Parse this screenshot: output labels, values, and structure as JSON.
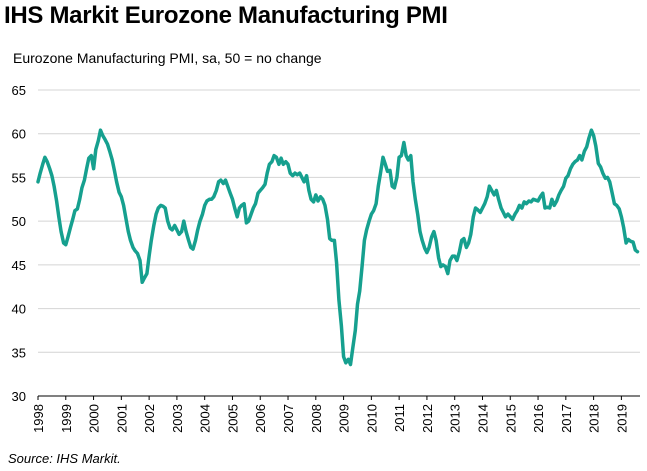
{
  "title": "IHS Markit Eurozone Manufacturing PMI",
  "subtitle": "Eurozone Manufacturing PMI, sa, 50 = no change",
  "source": "Source: IHS Markit.",
  "line_color": "#16a08f",
  "chart_data": {
    "type": "line",
    "title": "IHS Markit Eurozone Manufacturing PMI",
    "ylabel": "",
    "xlabel": "",
    "ylim": [
      30,
      65
    ],
    "yticks": [
      30,
      35,
      40,
      45,
      50,
      55,
      60,
      65
    ],
    "xlim": [
      1998,
      2019.67
    ],
    "xticks": [
      "1998",
      "1999",
      "2000",
      "2001",
      "2002",
      "2003",
      "2004",
      "2005",
      "2006",
      "2007",
      "2008",
      "2009",
      "2010",
      "2011",
      "2012",
      "2013",
      "2014",
      "2015",
      "2016",
      "2017",
      "2018",
      "2019"
    ],
    "grid": "horizontal",
    "series": [
      {
        "points": [
          [
            1998.0,
            54.5
          ],
          [
            1998.08,
            55.5
          ],
          [
            1998.17,
            56.5
          ],
          [
            1998.25,
            57.3
          ],
          [
            1998.33,
            56.8
          ],
          [
            1998.42,
            56.0
          ],
          [
            1998.5,
            55.2
          ],
          [
            1998.58,
            54.0
          ],
          [
            1998.67,
            52.3
          ],
          [
            1998.75,
            50.5
          ],
          [
            1998.83,
            48.8
          ],
          [
            1998.92,
            47.5
          ],
          [
            1999.0,
            47.3
          ],
          [
            1999.08,
            48.2
          ],
          [
            1999.17,
            49.3
          ],
          [
            1999.25,
            50.2
          ],
          [
            1999.33,
            51.2
          ],
          [
            1999.42,
            51.4
          ],
          [
            1999.5,
            52.5
          ],
          [
            1999.58,
            53.8
          ],
          [
            1999.67,
            54.7
          ],
          [
            1999.75,
            56.0
          ],
          [
            1999.83,
            57.2
          ],
          [
            1999.92,
            57.5
          ],
          [
            2000.0,
            56.0
          ],
          [
            2000.08,
            58.2
          ],
          [
            2000.17,
            59.2
          ],
          [
            2000.25,
            60.4
          ],
          [
            2000.33,
            59.8
          ],
          [
            2000.42,
            59.3
          ],
          [
            2000.5,
            58.8
          ],
          [
            2000.58,
            58.0
          ],
          [
            2000.67,
            57.0
          ],
          [
            2000.75,
            55.8
          ],
          [
            2000.83,
            54.5
          ],
          [
            2000.92,
            53.3
          ],
          [
            2001.0,
            52.8
          ],
          [
            2001.08,
            51.8
          ],
          [
            2001.17,
            50.2
          ],
          [
            2001.25,
            48.8
          ],
          [
            2001.33,
            47.8
          ],
          [
            2001.42,
            47.0
          ],
          [
            2001.5,
            46.6
          ],
          [
            2001.58,
            46.3
          ],
          [
            2001.67,
            45.5
          ],
          [
            2001.75,
            43.0
          ],
          [
            2001.83,
            43.5
          ],
          [
            2001.92,
            44.0
          ],
          [
            2002.0,
            46.0
          ],
          [
            2002.08,
            47.8
          ],
          [
            2002.17,
            49.5
          ],
          [
            2002.25,
            50.8
          ],
          [
            2002.33,
            51.5
          ],
          [
            2002.42,
            51.8
          ],
          [
            2002.5,
            51.7
          ],
          [
            2002.58,
            51.5
          ],
          [
            2002.67,
            50.0
          ],
          [
            2002.75,
            49.2
          ],
          [
            2002.83,
            49.0
          ],
          [
            2002.92,
            49.5
          ],
          [
            2003.0,
            49.0
          ],
          [
            2003.08,
            48.5
          ],
          [
            2003.17,
            48.8
          ],
          [
            2003.25,
            50.0
          ],
          [
            2003.33,
            48.8
          ],
          [
            2003.42,
            47.8
          ],
          [
            2003.5,
            47.0
          ],
          [
            2003.58,
            46.8
          ],
          [
            2003.67,
            47.8
          ],
          [
            2003.75,
            49.0
          ],
          [
            2003.83,
            50.0
          ],
          [
            2003.92,
            50.8
          ],
          [
            2004.0,
            51.8
          ],
          [
            2004.08,
            52.3
          ],
          [
            2004.17,
            52.5
          ],
          [
            2004.25,
            52.5
          ],
          [
            2004.33,
            52.8
          ],
          [
            2004.42,
            53.5
          ],
          [
            2004.5,
            54.5
          ],
          [
            2004.58,
            54.7
          ],
          [
            2004.67,
            54.3
          ],
          [
            2004.75,
            54.7
          ],
          [
            2004.83,
            54.0
          ],
          [
            2004.92,
            53.2
          ],
          [
            2005.0,
            52.5
          ],
          [
            2005.08,
            51.5
          ],
          [
            2005.17,
            50.5
          ],
          [
            2005.25,
            51.5
          ],
          [
            2005.33,
            51.8
          ],
          [
            2005.42,
            52.0
          ],
          [
            2005.5,
            49.8
          ],
          [
            2005.58,
            50.0
          ],
          [
            2005.67,
            50.8
          ],
          [
            2005.75,
            51.5
          ],
          [
            2005.83,
            52.0
          ],
          [
            2005.92,
            53.2
          ],
          [
            2006.0,
            53.5
          ],
          [
            2006.08,
            53.8
          ],
          [
            2006.17,
            54.2
          ],
          [
            2006.25,
            55.5
          ],
          [
            2006.33,
            56.5
          ],
          [
            2006.42,
            56.8
          ],
          [
            2006.5,
            57.5
          ],
          [
            2006.58,
            57.3
          ],
          [
            2006.67,
            56.5
          ],
          [
            2006.75,
            57.2
          ],
          [
            2006.83,
            56.5
          ],
          [
            2006.92,
            56.8
          ],
          [
            2007.0,
            56.5
          ],
          [
            2007.08,
            55.5
          ],
          [
            2007.17,
            55.2
          ],
          [
            2007.25,
            55.5
          ],
          [
            2007.33,
            55.3
          ],
          [
            2007.42,
            55.5
          ],
          [
            2007.5,
            55.0
          ],
          [
            2007.58,
            54.5
          ],
          [
            2007.67,
            55.2
          ],
          [
            2007.75,
            53.5
          ],
          [
            2007.83,
            52.5
          ],
          [
            2007.92,
            52.2
          ],
          [
            2008.0,
            53.0
          ],
          [
            2008.08,
            52.3
          ],
          [
            2008.17,
            52.8
          ],
          [
            2008.25,
            52.5
          ],
          [
            2008.33,
            51.8
          ],
          [
            2008.42,
            50.2
          ],
          [
            2008.5,
            48.0
          ],
          [
            2008.58,
            47.8
          ],
          [
            2008.67,
            47.8
          ],
          [
            2008.75,
            45.2
          ],
          [
            2008.83,
            41.0
          ],
          [
            2008.92,
            38.0
          ],
          [
            2009.0,
            34.5
          ],
          [
            2009.08,
            33.8
          ],
          [
            2009.17,
            34.2
          ],
          [
            2009.25,
            33.6
          ],
          [
            2009.33,
            35.5
          ],
          [
            2009.42,
            37.5
          ],
          [
            2009.5,
            40.5
          ],
          [
            2009.58,
            42.0
          ],
          [
            2009.67,
            45.0
          ],
          [
            2009.75,
            47.8
          ],
          [
            2009.83,
            49.0
          ],
          [
            2009.92,
            50.0
          ],
          [
            2010.0,
            50.8
          ],
          [
            2010.08,
            51.2
          ],
          [
            2010.17,
            52.0
          ],
          [
            2010.25,
            54.0
          ],
          [
            2010.33,
            55.5
          ],
          [
            2010.42,
            57.3
          ],
          [
            2010.5,
            56.5
          ],
          [
            2010.58,
            55.7
          ],
          [
            2010.67,
            55.8
          ],
          [
            2010.75,
            54.0
          ],
          [
            2010.83,
            53.8
          ],
          [
            2010.92,
            55.0
          ],
          [
            2011.0,
            57.3
          ],
          [
            2011.08,
            57.5
          ],
          [
            2011.17,
            59.0
          ],
          [
            2011.25,
            57.5
          ],
          [
            2011.33,
            57.0
          ],
          [
            2011.42,
            57.5
          ],
          [
            2011.5,
            54.5
          ],
          [
            2011.58,
            52.5
          ],
          [
            2011.67,
            50.7
          ],
          [
            2011.75,
            48.8
          ],
          [
            2011.83,
            47.8
          ],
          [
            2011.92,
            46.9
          ],
          [
            2012.0,
            46.4
          ],
          [
            2012.08,
            47.0
          ],
          [
            2012.17,
            48.2
          ],
          [
            2012.25,
            48.8
          ],
          [
            2012.33,
            47.8
          ],
          [
            2012.42,
            45.8
          ],
          [
            2012.5,
            44.8
          ],
          [
            2012.58,
            45.0
          ],
          [
            2012.67,
            44.8
          ],
          [
            2012.75,
            44.0
          ],
          [
            2012.83,
            45.5
          ],
          [
            2012.92,
            46.0
          ],
          [
            2013.0,
            46.0
          ],
          [
            2013.08,
            45.5
          ],
          [
            2013.17,
            46.5
          ],
          [
            2013.25,
            47.8
          ],
          [
            2013.33,
            48.0
          ],
          [
            2013.42,
            47.0
          ],
          [
            2013.5,
            47.5
          ],
          [
            2013.58,
            48.5
          ],
          [
            2013.67,
            50.5
          ],
          [
            2013.75,
            51.5
          ],
          [
            2013.83,
            51.3
          ],
          [
            2013.92,
            51.0
          ],
          [
            2014.0,
            51.5
          ],
          [
            2014.08,
            52.0
          ],
          [
            2014.17,
            52.8
          ],
          [
            2014.25,
            54.0
          ],
          [
            2014.33,
            53.5
          ],
          [
            2014.42,
            53.0
          ],
          [
            2014.5,
            53.5
          ],
          [
            2014.58,
            52.5
          ],
          [
            2014.67,
            51.5
          ],
          [
            2014.75,
            51.0
          ],
          [
            2014.83,
            50.5
          ],
          [
            2014.92,
            50.8
          ],
          [
            2015.0,
            50.5
          ],
          [
            2015.08,
            50.2
          ],
          [
            2015.17,
            50.8
          ],
          [
            2015.25,
            51.2
          ],
          [
            2015.33,
            51.8
          ],
          [
            2015.42,
            51.5
          ],
          [
            2015.5,
            52.2
          ],
          [
            2015.58,
            52.0
          ],
          [
            2015.67,
            52.3
          ],
          [
            2015.75,
            52.2
          ],
          [
            2015.83,
            52.5
          ],
          [
            2015.92,
            52.4
          ],
          [
            2016.0,
            52.3
          ],
          [
            2016.08,
            52.8
          ],
          [
            2016.17,
            53.2
          ],
          [
            2016.25,
            51.5
          ],
          [
            2016.33,
            51.6
          ],
          [
            2016.42,
            51.5
          ],
          [
            2016.5,
            52.5
          ],
          [
            2016.58,
            51.8
          ],
          [
            2016.67,
            52.3
          ],
          [
            2016.75,
            53.0
          ],
          [
            2016.83,
            53.5
          ],
          [
            2016.92,
            54.0
          ],
          [
            2017.0,
            54.9
          ],
          [
            2017.08,
            55.2
          ],
          [
            2017.17,
            56.0
          ],
          [
            2017.25,
            56.5
          ],
          [
            2017.33,
            56.8
          ],
          [
            2017.42,
            57.0
          ],
          [
            2017.5,
            57.5
          ],
          [
            2017.58,
            57.0
          ],
          [
            2017.67,
            58.0
          ],
          [
            2017.75,
            58.5
          ],
          [
            2017.83,
            59.5
          ],
          [
            2017.92,
            60.4
          ],
          [
            2018.0,
            59.8
          ],
          [
            2018.08,
            58.6
          ],
          [
            2018.17,
            56.6
          ],
          [
            2018.25,
            56.2
          ],
          [
            2018.33,
            55.5
          ],
          [
            2018.42,
            54.9
          ],
          [
            2018.5,
            55.0
          ],
          [
            2018.58,
            54.5
          ],
          [
            2018.67,
            53.2
          ],
          [
            2018.75,
            52.0
          ],
          [
            2018.83,
            51.8
          ],
          [
            2018.92,
            51.4
          ],
          [
            2019.0,
            50.5
          ],
          [
            2019.08,
            49.3
          ],
          [
            2019.17,
            47.5
          ],
          [
            2019.25,
            47.9
          ],
          [
            2019.33,
            47.7
          ],
          [
            2019.42,
            47.6
          ],
          [
            2019.5,
            46.7
          ],
          [
            2019.58,
            46.5
          ]
        ]
      }
    ]
  }
}
